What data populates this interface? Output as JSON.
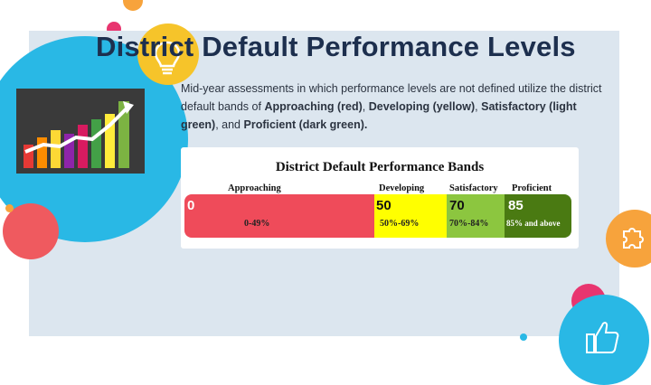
{
  "slide": {
    "title": "District Default Performance Levels",
    "description": {
      "intro": "Mid-year assessments in which performance levels are not defined utilize the district default bands of",
      "approaching": "Approaching (red)",
      "sep1": ",",
      "developing": "Developing (yellow)",
      "sep2": ",",
      "satisfactory": "Satisfactory (light green)",
      "sep3": ", and",
      "proficient": "Proficient (dark green).",
      "sep4": ""
    }
  },
  "bands_image": {
    "title": "District Default Performance Bands",
    "bands": [
      {
        "label": "Approaching",
        "start": "0",
        "range": "0-49%",
        "color": "#ef4b5a"
      },
      {
        "label": "Developing",
        "start": "50",
        "range": "50%-69%",
        "color": "#ffff00"
      },
      {
        "label": "Satisfactory",
        "start": "70",
        "range": "70%-84%",
        "color": "#8cc63f"
      },
      {
        "label": "Proficient",
        "start": "85",
        "range": "85% and above",
        "color": "#4a7a12"
      }
    ]
  },
  "colors": {
    "panel": "#dce6ef",
    "circle_cyan": "#29b8e5",
    "circle_yellow": "#f6c42a",
    "circle_red": "#ef5a5f",
    "circle_orange": "#f7a33c",
    "circle_pink": "#e8356f"
  },
  "icons": [
    "lightbulb-icon",
    "puzzle-icon",
    "thumbs-up-icon",
    "bar-chart-growth-image"
  ]
}
